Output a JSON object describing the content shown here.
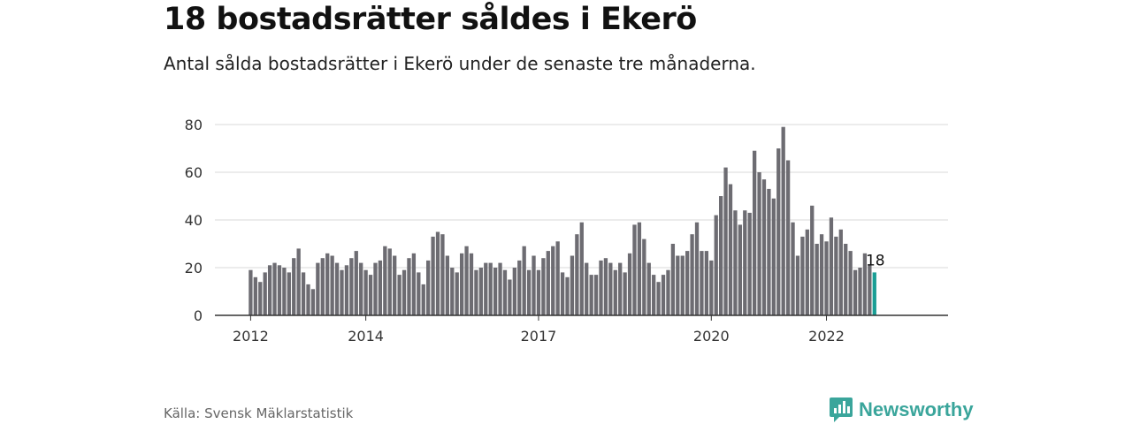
{
  "header": {
    "title": "18 bostadsrätter såldes i Ekerö",
    "subtitle": "Antal sålda bostadsrätter i Ekerö under de senaste tre månaderna."
  },
  "footer": {
    "source": "Källa: Svensk Mäklarstatistik",
    "brand": "Newsworthy",
    "brand_icon": "newsworthy-bar-chart-icon"
  },
  "colors": {
    "bar": "#6d6c72",
    "highlight": "#1a9e95",
    "grid": "#d9d9d9",
    "axis": "#333333",
    "brand": "#3aa59b"
  },
  "chart_data": {
    "type": "bar",
    "x_start": "2012-01",
    "x_end": "2023-03",
    "x_unit": "month",
    "xtick_labels": [
      "2012",
      "2014",
      "2017",
      "2020",
      "2022"
    ],
    "ylim": [
      0,
      80
    ],
    "yticks": [
      0,
      20,
      40,
      60,
      80
    ],
    "grid": true,
    "legend": "none",
    "highlight_label": "18",
    "values": [
      19,
      16,
      14,
      18,
      21,
      22,
      21,
      20,
      18,
      24,
      28,
      18,
      13,
      11,
      22,
      24,
      26,
      25,
      22,
      19,
      21,
      24,
      27,
      22,
      19,
      17,
      22,
      23,
      29,
      28,
      25,
      17,
      19,
      24,
      26,
      18,
      13,
      23,
      33,
      35,
      34,
      25,
      20,
      18,
      26,
      29,
      26,
      19,
      20,
      22,
      22,
      20,
      22,
      19,
      15,
      20,
      23,
      29,
      19,
      25,
      19,
      24,
      27,
      29,
      31,
      18,
      16,
      25,
      34,
      39,
      22,
      17,
      17,
      23,
      24,
      22,
      19,
      22,
      18,
      26,
      38,
      39,
      32,
      22,
      17,
      14,
      17,
      19,
      30,
      25,
      25,
      27,
      34,
      39,
      27,
      27,
      23,
      42,
      50,
      62,
      55,
      44,
      38,
      44,
      43,
      69,
      60,
      57,
      53,
      49,
      70,
      79,
      65,
      39,
      25,
      33,
      36,
      46,
      30,
      34,
      31,
      41,
      33,
      36,
      30,
      27,
      19,
      20,
      26,
      21,
      18
    ]
  }
}
